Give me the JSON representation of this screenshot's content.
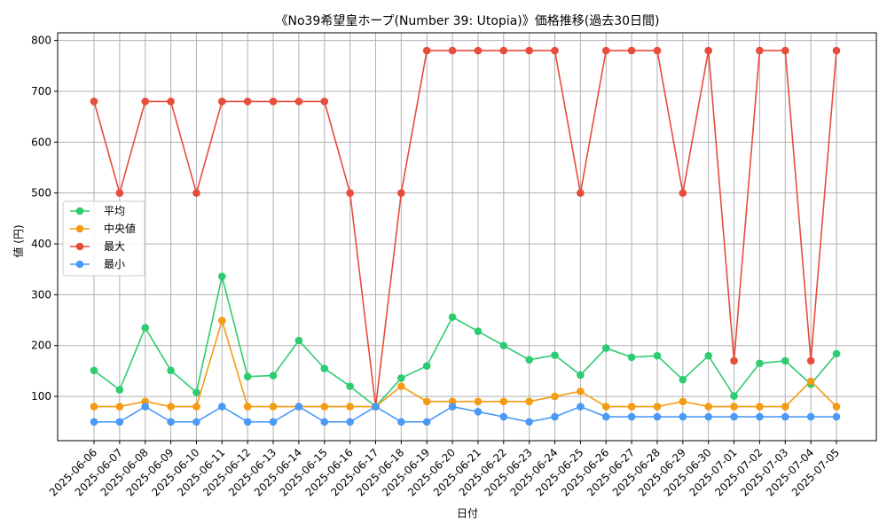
{
  "chart_data": {
    "type": "line",
    "title": "《No39希望皇ホープ(Number 39: Utopia)》価格推移(過去30日間)",
    "xlabel": "日付",
    "ylabel": "値 (円)",
    "ylim": [
      13,
      815
    ],
    "yticks": [
      100,
      200,
      300,
      400,
      500,
      600,
      700,
      800
    ],
    "grid": true,
    "legend_position": "center-left",
    "categories": [
      "2025-06-06",
      "2025-06-07",
      "2025-06-08",
      "2025-06-09",
      "2025-06-10",
      "2025-06-11",
      "2025-06-12",
      "2025-06-13",
      "2025-06-14",
      "2025-06-15",
      "2025-06-16",
      "2025-06-17",
      "2025-06-18",
      "2025-06-19",
      "2025-06-20",
      "2025-06-21",
      "2025-06-22",
      "2025-06-23",
      "2025-06-24",
      "2025-06-25",
      "2025-06-26",
      "2025-06-27",
      "2025-06-28",
      "2025-06-29",
      "2025-06-30",
      "2025-07-01",
      "2025-07-02",
      "2025-07-03",
      "2025-07-04",
      "2025-07-05"
    ],
    "series": [
      {
        "name": "平均",
        "color": "#2ecc71",
        "values": [
          151,
          113,
          235,
          151,
          108,
          336,
          139,
          141,
          210,
          155,
          120,
          80,
          136,
          160,
          256,
          228,
          200,
          172,
          181,
          142,
          195,
          177,
          180,
          133,
          180,
          101,
          165,
          170,
          124,
          184
        ]
      },
      {
        "name": "中央値",
        "color": "#f39c12",
        "values": [
          80,
          80,
          90,
          80,
          80,
          249,
          80,
          80,
          80,
          80,
          80,
          80,
          120,
          90,
          90,
          90,
          90,
          90,
          100,
          110,
          80,
          80,
          80,
          90,
          80,
          80,
          80,
          80,
          130,
          80
        ]
      },
      {
        "name": "最大",
        "color": "#e74c3c",
        "values": [
          680,
          500,
          680,
          680,
          500,
          680,
          680,
          680,
          680,
          680,
          500,
          80,
          500,
          780,
          780,
          780,
          780,
          780,
          780,
          500,
          780,
          780,
          780,
          500,
          780,
          170,
          780,
          780,
          170,
          780
        ]
      },
      {
        "name": "最小",
        "color": "#4a9af5",
        "values": [
          50,
          50,
          80,
          50,
          50,
          80,
          50,
          50,
          80,
          50,
          50,
          80,
          50,
          50,
          80,
          70,
          60,
          50,
          60,
          80,
          60,
          60,
          60,
          60,
          60,
          60,
          60,
          60,
          60,
          60
        ]
      }
    ]
  }
}
